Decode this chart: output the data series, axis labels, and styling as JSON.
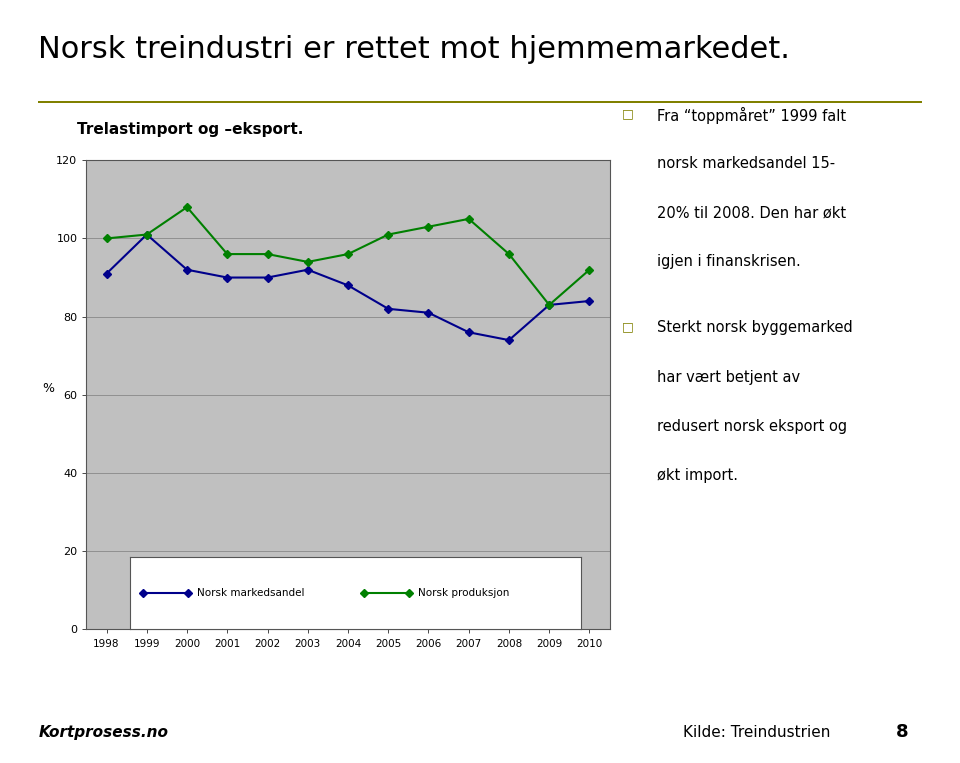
{
  "title": "Norsk treindustri er rettet mot hjemmemarkedet.",
  "subtitle": "Trelastimport og –eksport.",
  "title_color": "#000000",
  "subtitle_fontsize": 11,
  "title_fontsize": 22,
  "separator_color": "#808000",
  "years": [
    1998,
    1999,
    2000,
    2001,
    2002,
    2003,
    2004,
    2005,
    2006,
    2007,
    2008,
    2009,
    2010
  ],
  "markedsandel": [
    91,
    101,
    92,
    90,
    90,
    92,
    88,
    82,
    81,
    76,
    74,
    83,
    84
  ],
  "produksjon": [
    100,
    101,
    108,
    96,
    96,
    94,
    96,
    101,
    103,
    105,
    96,
    83,
    92
  ],
  "markedsandel_color": "#00008B",
  "produksjon_color": "#008000",
  "ylabel": "%",
  "ylim": [
    0,
    120
  ],
  "yticks": [
    0,
    20,
    40,
    60,
    80,
    100,
    120
  ],
  "plot_bg_color": "#C0C0C0",
  "fig_bg_color": "#FFFFFF",
  "grid_color": "#555555",
  "legend_label1": "Norsk markedsandel",
  "legend_label2": "Norsk produksjon",
  "bullet1_line1": "Fra “toppmåret” 1999 falt",
  "bullet1_line2": "norsk markedsandel 15-",
  "bullet1_line3": "20% til 2008. Den har økt",
  "bullet1_line4": "igjen i finanskrisen.",
  "bullet2_line1": "Sterkt norsk byggemarked",
  "bullet2_line2": "har vært betjent av",
  "bullet2_line3": "redusert norsk eksport og",
  "bullet2_line4": "økt import.",
  "footer_left": "Kortprosess.no",
  "footer_right": "Kilde: Treindustrien",
  "page_number": "8",
  "bullet_marker_color": "#808000"
}
